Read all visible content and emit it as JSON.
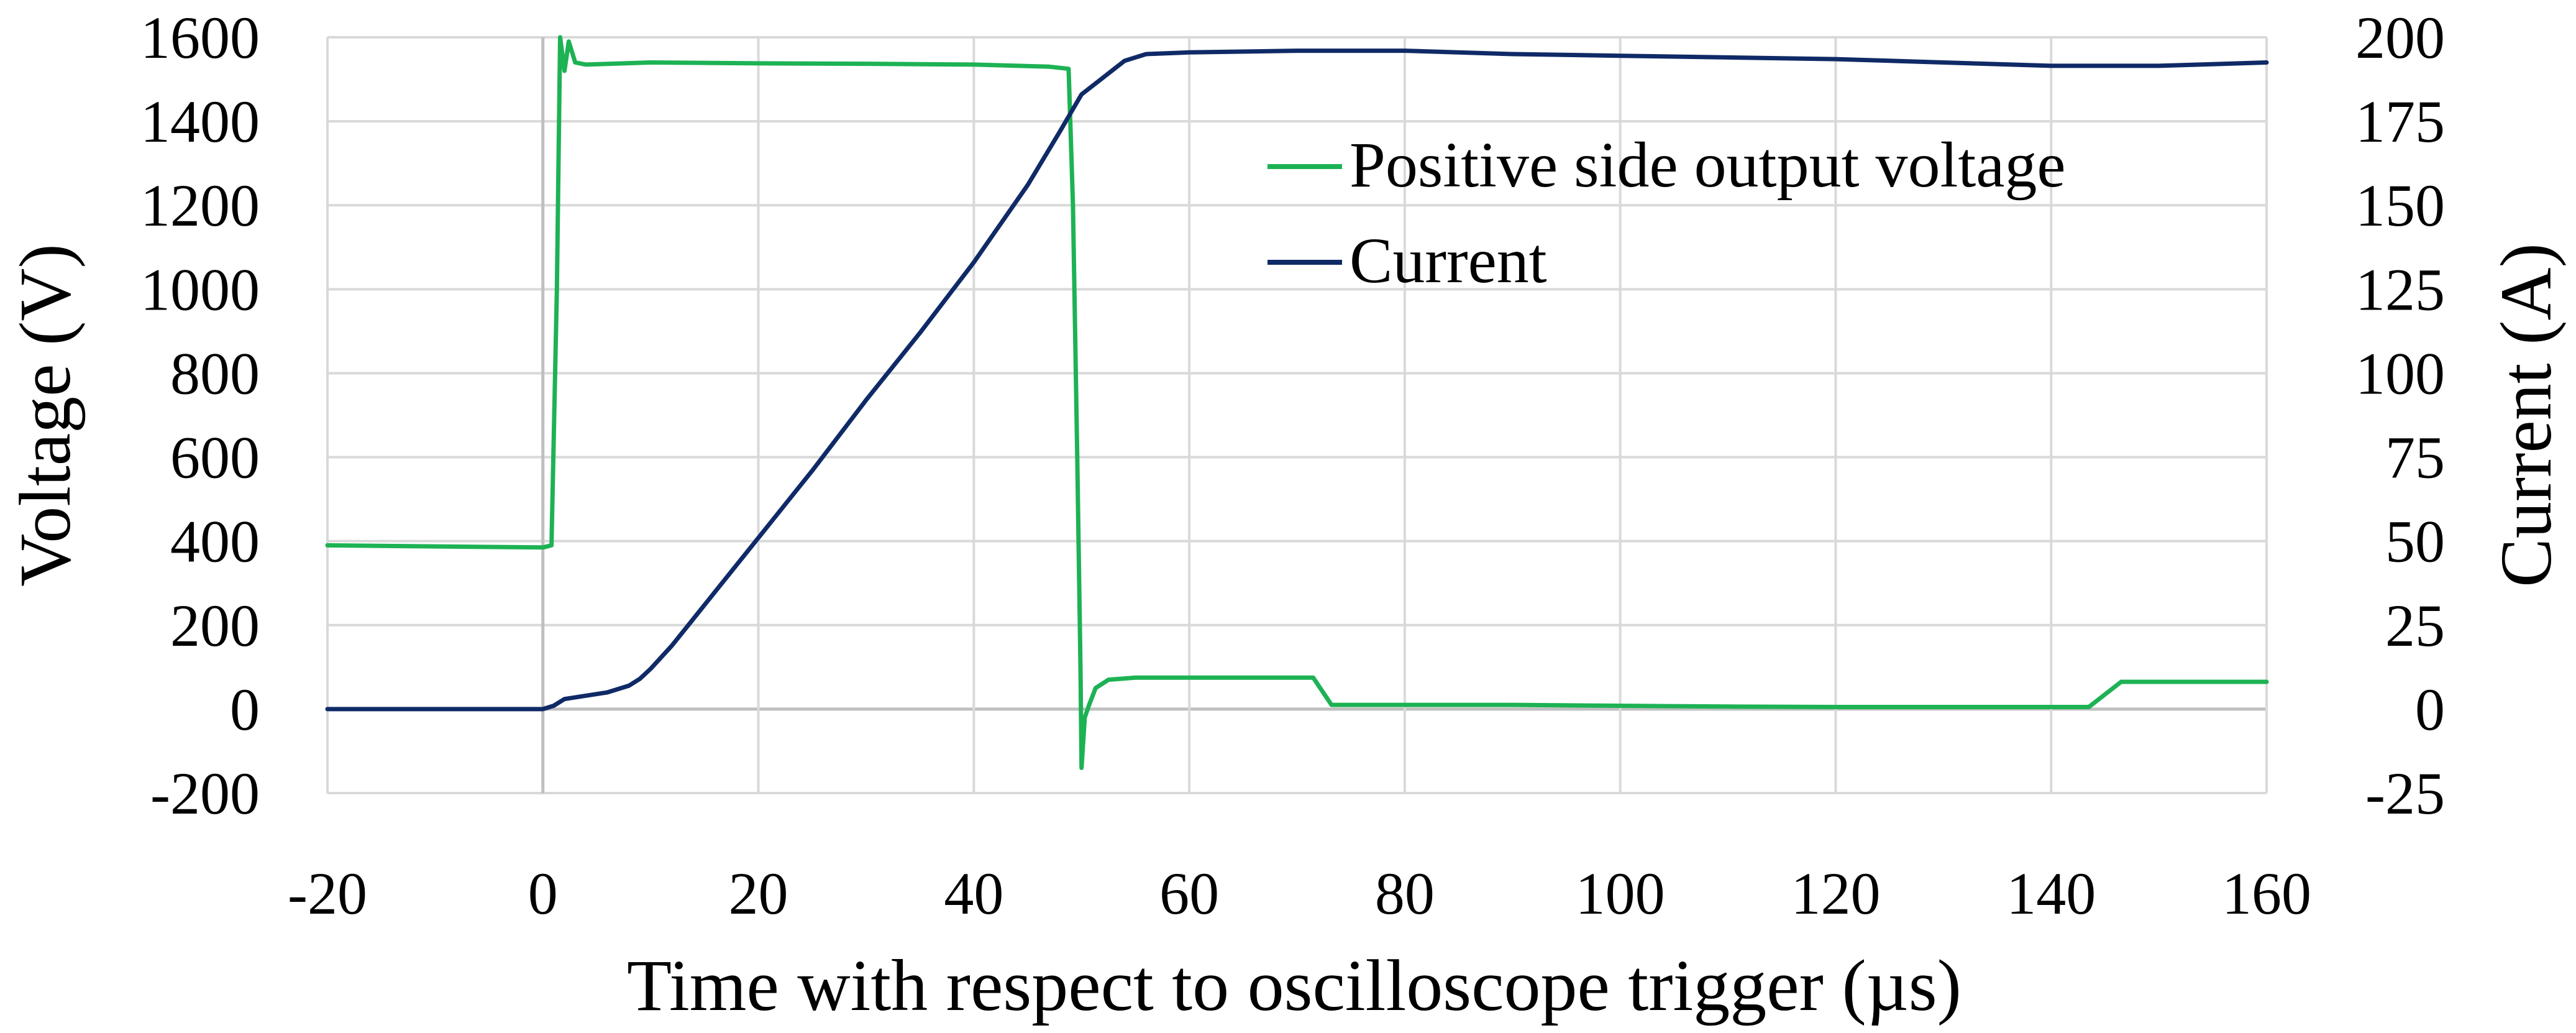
{
  "chart_data": {
    "type": "line",
    "title": "",
    "xlabel": "Time with respect to oscilloscope trigger (µs)",
    "ylabel": "Voltage (V)",
    "y2label": "Current (A)",
    "xlim": [
      -20,
      160
    ],
    "ylim": [
      -200,
      1600
    ],
    "y2lim": [
      -25,
      200
    ],
    "x_ticks": [
      -20,
      0,
      20,
      40,
      60,
      80,
      100,
      120,
      140,
      160
    ],
    "y_ticks": [
      -200,
      0,
      200,
      400,
      600,
      800,
      1000,
      1200,
      1400,
      1600
    ],
    "y2_ticks": [
      -25,
      0,
      25,
      50,
      75,
      100,
      125,
      150,
      175,
      200
    ],
    "x_tick_labels": [
      "-20",
      "0",
      "20",
      "40",
      "60",
      "80",
      "100",
      "120",
      "140",
      "160"
    ],
    "y_tick_labels": [
      "-200",
      "0",
      "200",
      "400",
      "600",
      "800",
      "1000",
      "1200",
      "1400",
      "1600"
    ],
    "y2_tick_labels": [
      "-25",
      "0",
      "25",
      "50",
      "75",
      "100",
      "125",
      "150",
      "175",
      "200"
    ],
    "grid": true,
    "legend_position": "top-right",
    "series": [
      {
        "name": "Positive side output voltage",
        "axis": "left",
        "color": "#1db254",
        "points": [
          [
            -20,
            390
          ],
          [
            0,
            385
          ],
          [
            0.8,
            390
          ],
          [
            1.3,
            1000
          ],
          [
            1.6,
            1600
          ],
          [
            2.0,
            1520
          ],
          [
            2.4,
            1590
          ],
          [
            3.0,
            1540
          ],
          [
            4,
            1535
          ],
          [
            10,
            1540
          ],
          [
            20,
            1538
          ],
          [
            30,
            1537
          ],
          [
            40,
            1535
          ],
          [
            47,
            1530
          ],
          [
            48.8,
            1525
          ],
          [
            49.2,
            1200
          ],
          [
            49.6,
            600
          ],
          [
            49.9,
            100
          ],
          [
            50.0,
            -140
          ],
          [
            50.3,
            -20
          ],
          [
            50.7,
            10
          ],
          [
            51.3,
            50
          ],
          [
            52.5,
            70
          ],
          [
            55,
            75
          ],
          [
            60,
            75
          ],
          [
            65,
            75
          ],
          [
            70,
            75
          ],
          [
            71.5,
            75
          ],
          [
            73.2,
            10
          ],
          [
            80,
            10
          ],
          [
            90,
            10
          ],
          [
            100,
            8
          ],
          [
            110,
            6
          ],
          [
            120,
            5
          ],
          [
            130,
            5
          ],
          [
            143.5,
            5
          ],
          [
            146.5,
            65
          ],
          [
            152,
            65
          ],
          [
            160,
            65
          ]
        ]
      },
      {
        "name": "Current",
        "axis": "right",
        "color": "#0f2a66",
        "points": [
          [
            -20,
            0
          ],
          [
            -10,
            0
          ],
          [
            0,
            0
          ],
          [
            1,
            1
          ],
          [
            2,
            3
          ],
          [
            4,
            4
          ],
          [
            6,
            5
          ],
          [
            8,
            7
          ],
          [
            9,
            9
          ],
          [
            10,
            12
          ],
          [
            12,
            19
          ],
          [
            14,
            27
          ],
          [
            16,
            35
          ],
          [
            20,
            51
          ],
          [
            25,
            71
          ],
          [
            30,
            92
          ],
          [
            35,
            112
          ],
          [
            40,
            133
          ],
          [
            45,
            156
          ],
          [
            48,
            172
          ],
          [
            50,
            183
          ],
          [
            52,
            188
          ],
          [
            54,
            193
          ],
          [
            56,
            195
          ],
          [
            60,
            195.5
          ],
          [
            70,
            196
          ],
          [
            80,
            196
          ],
          [
            90,
            195
          ],
          [
            100,
            194.5
          ],
          [
            110,
            194
          ],
          [
            120,
            193.5
          ],
          [
            130,
            192.5
          ],
          [
            140,
            191.5
          ],
          [
            150,
            191.5
          ],
          [
            155,
            192
          ],
          [
            160,
            192.5
          ]
        ]
      }
    ]
  }
}
